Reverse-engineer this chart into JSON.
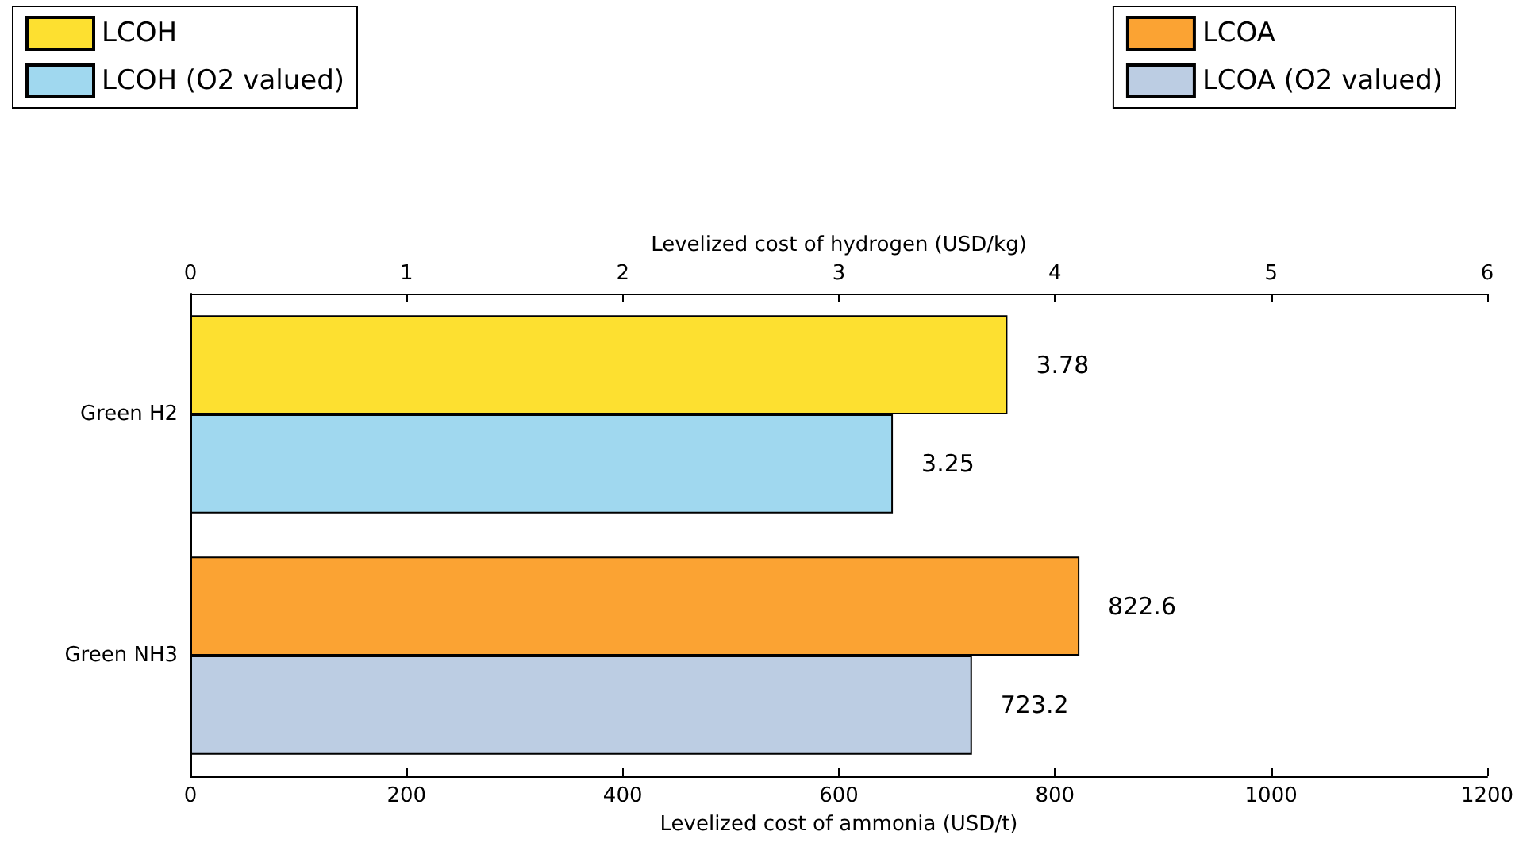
{
  "chart_data": {
    "type": "bar",
    "orientation": "horizontal",
    "categories": [
      "Green H2",
      "Green NH3"
    ],
    "series": [
      {
        "name": "LCOH",
        "color": "#fde030",
        "values": [
          3.78,
          null
        ],
        "axis": "x2"
      },
      {
        "name": "LCOH (O2 valued)",
        "color": "#a0d8ef",
        "values": [
          3.25,
          null
        ],
        "axis": "x2"
      },
      {
        "name": "LCOA",
        "color": "#fba333",
        "values": [
          null,
          822.6
        ]
      },
      {
        "name": "LCOA (O2 valued)",
        "color": "#bccde3",
        "values": [
          null,
          723.2
        ]
      }
    ],
    "xlabel": "Levelized cost of ammonia (USD/t)",
    "x2label": "Levelized cost of hydrogen (USD/kg)",
    "xlim": [
      0,
      1200
    ],
    "xticks": [
      0,
      200,
      400,
      600,
      800,
      1000,
      1200
    ],
    "x2lim": [
      0,
      6
    ],
    "x2ticks": [
      0,
      1,
      2,
      3,
      4,
      5,
      6
    ],
    "data_labels": true,
    "legend": "top",
    "grid": false
  }
}
